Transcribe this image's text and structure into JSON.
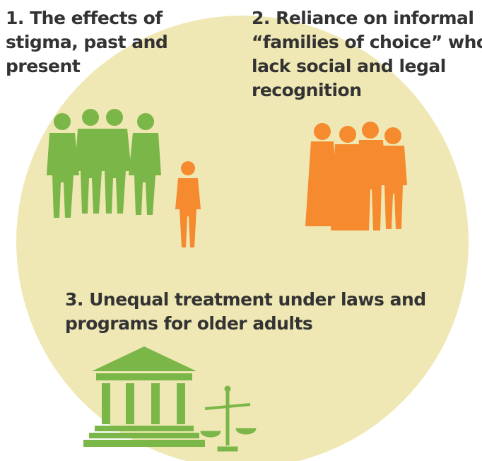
{
  "items": [
    {
      "lines": [
        "1. The effects of",
        "stigma, past and",
        "present"
      ]
    },
    {
      "lines": [
        "2. Reliance on informal",
        "“families of choice” who",
        "lack social and legal",
        "recognition"
      ]
    },
    {
      "lines": [
        "3. Unequal treatment under laws and",
        "programs for older adults"
      ]
    }
  ]
}
